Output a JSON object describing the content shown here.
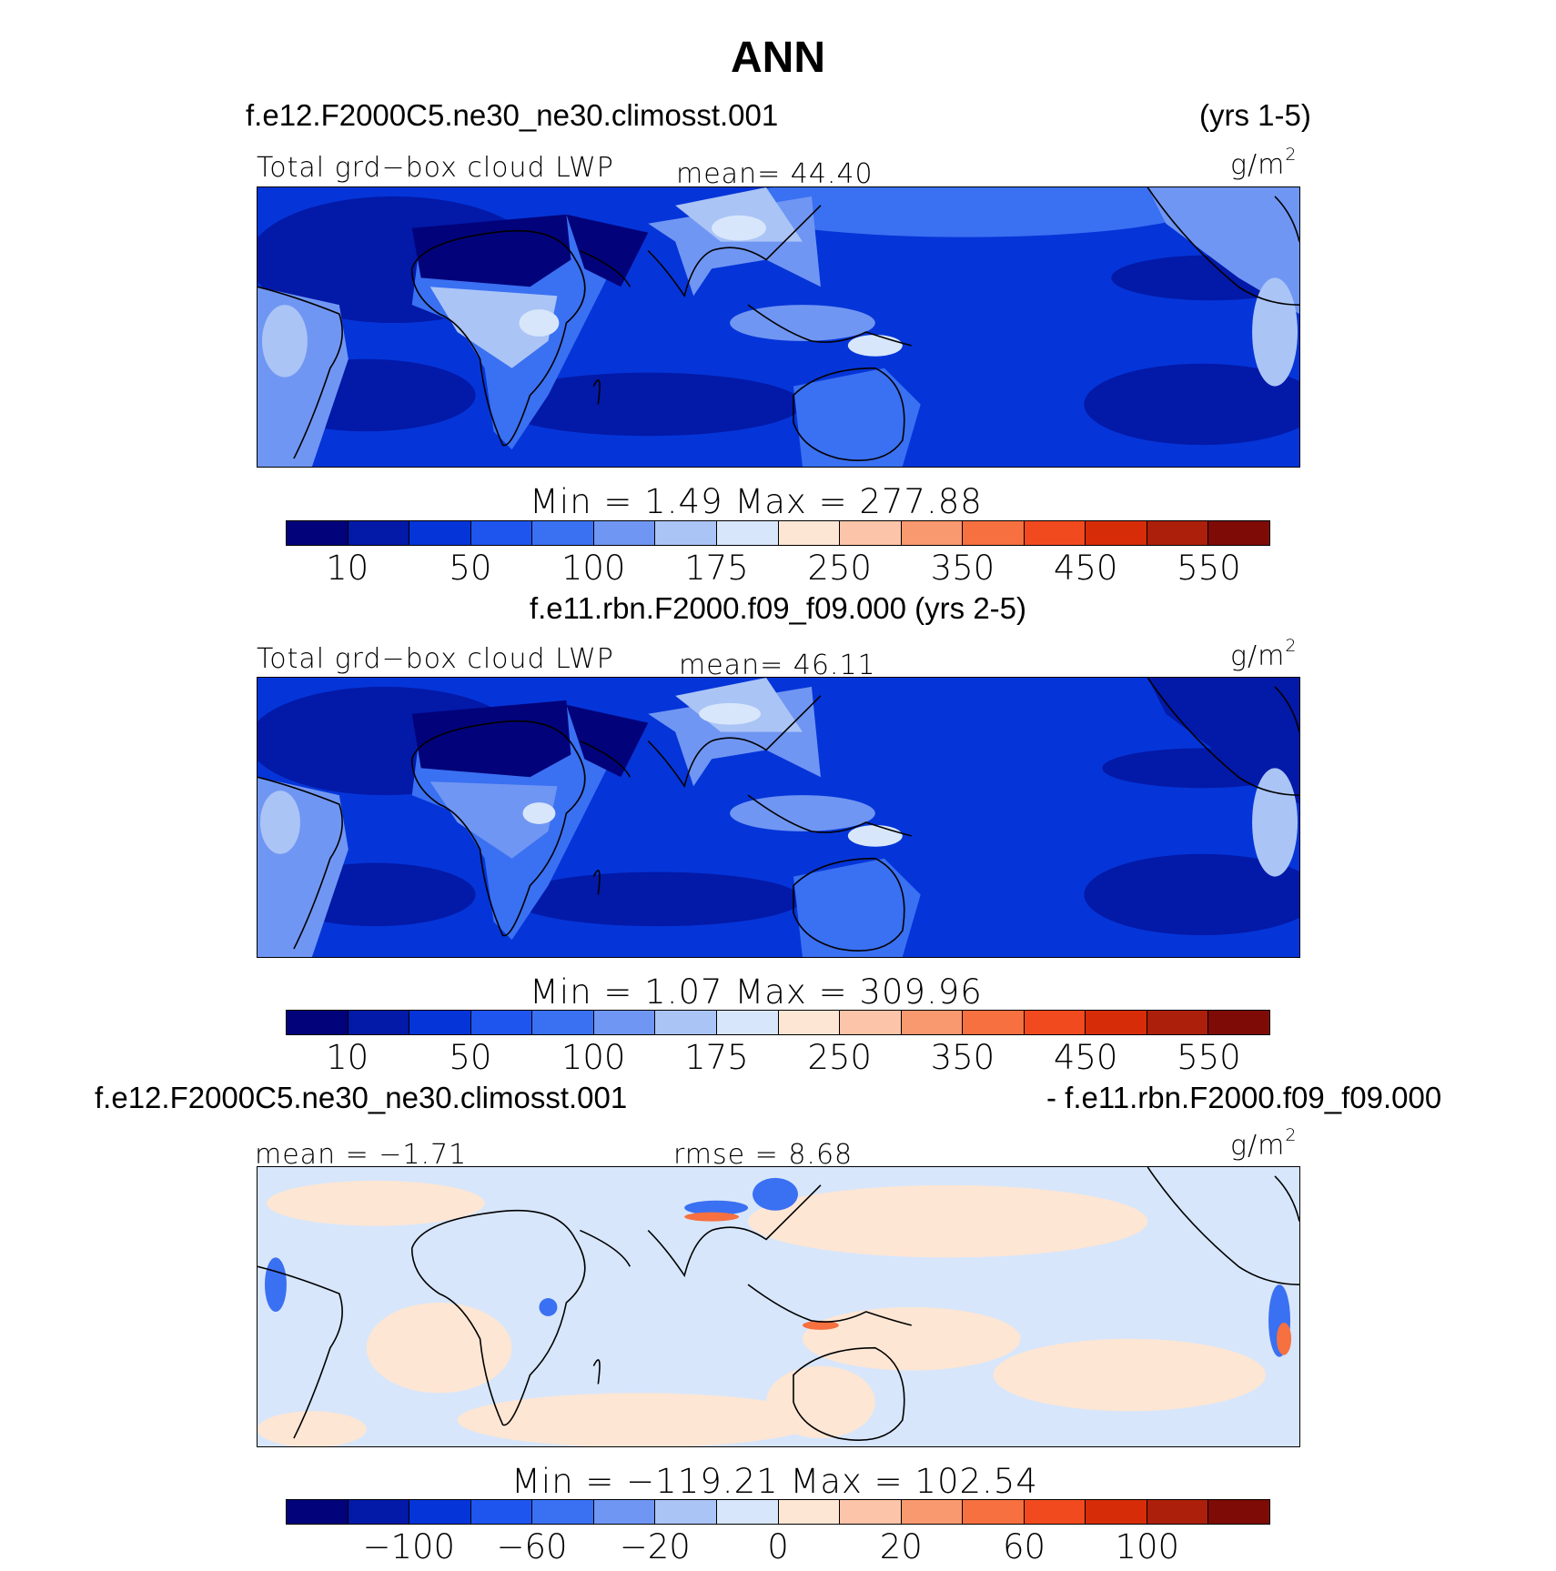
{
  "figure_title": "ANN",
  "panels": [
    {
      "case_left": "f.e12.F2000C5.ne30_ne30.climosst.001",
      "case_right": "(yrs 1-5)",
      "variable": "Total grd−box cloud LWP",
      "stat_left": "",
      "stat_mid": "mean=   44.40",
      "units_base": "g/m",
      "units_exp": "2",
      "minmax": "Min  =     1.49  Max  =  277.88",
      "colorbar_ticks": [
        "10",
        "50",
        "100",
        "175",
        "250",
        "350",
        "450",
        "550"
      ]
    },
    {
      "case_left": "",
      "case_right": "",
      "case_center": "f.e11.rbn.F2000.f09_f09.000 (yrs 2-5)",
      "variable": "Total grd−box cloud LWP",
      "stat_left": "",
      "stat_mid": "mean=   46.11",
      "units_base": "g/m",
      "units_exp": "2",
      "minmax": "Min  =     1.07  Max  =  309.96",
      "colorbar_ticks": [
        "10",
        "50",
        "100",
        "175",
        "250",
        "350",
        "450",
        "550"
      ]
    },
    {
      "case_left": "f.e12.F2000C5.ne30_ne30.climosst.001",
      "case_right": "- f.e11.rbn.F2000.f09_f09.000",
      "variable": "",
      "stat_left": "mean  =   −1.71",
      "stat_mid": "rmse  =    8.68",
      "units_base": "g/m",
      "units_exp": "2",
      "minmax": "Min  =  −119.21  Max  =  102.54",
      "colorbar_ticks": [
        "−100",
        "−60",
        "−20",
        "0",
        "20",
        "60",
        "100"
      ]
    }
  ],
  "colorbar_colors": [
    "#02037a",
    "#0319a8",
    "#0535d8",
    "#1f55ef",
    "#3a70f2",
    "#7096f3",
    "#aac4f6",
    "#d7e6fb",
    "#fde6d4",
    "#fcc4a8",
    "#f9996f",
    "#f67040",
    "#f24a1f",
    "#d62d08",
    "#ac1f0a",
    "#7e0b06"
  ],
  "map_colors": {
    "ocean": "#0535d8",
    "dry": "#0319a8",
    "desert": "#02037a",
    "moist": "#3a70f2",
    "wet": "#7096f3",
    "verywet": "#aac4f6",
    "peak": "#d7e6fb",
    "diff_neg": "#d7e6fb",
    "diff_pos": "#fde6d4",
    "diff_strong_neg": "#3a70f2",
    "diff_strong_pos": "#f67040"
  }
}
